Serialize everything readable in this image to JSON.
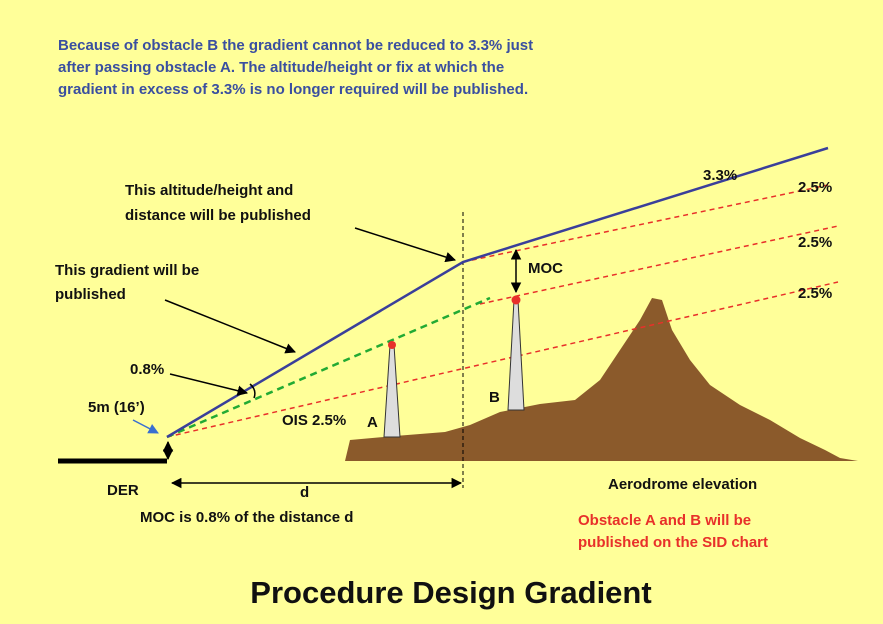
{
  "intro": [
    "Because of obstacle B the gradient cannot be reduced to 3.3% just",
    "after passing obstacle A. The altitude/height or fix at which the",
    "gradient in excess of 3.3% is no longer required will be published."
  ],
  "labels": {
    "grad33": "3.3%",
    "grad25a": "2.5%",
    "grad25b": "2.5%",
    "grad25c": "2.5%",
    "published_alt": [
      "This altitude/height and",
      "distance will be published"
    ],
    "published_grad": [
      "This gradient will be",
      "published"
    ],
    "moc": "MOC",
    "moc_pct": "0.8%",
    "height": "5m (16’)",
    "ois": "OIS 2.5%",
    "obstacle_a": "A",
    "obstacle_b": "B",
    "der": "DER",
    "d": "d",
    "aerodrome": "Aerodrome elevation",
    "moc_note": "MOC is 0.8% of the distance d",
    "sid_note": [
      "Obstacle A and B will be",
      "published on the SID chart"
    ]
  },
  "title": "Procedure Design Gradient"
}
